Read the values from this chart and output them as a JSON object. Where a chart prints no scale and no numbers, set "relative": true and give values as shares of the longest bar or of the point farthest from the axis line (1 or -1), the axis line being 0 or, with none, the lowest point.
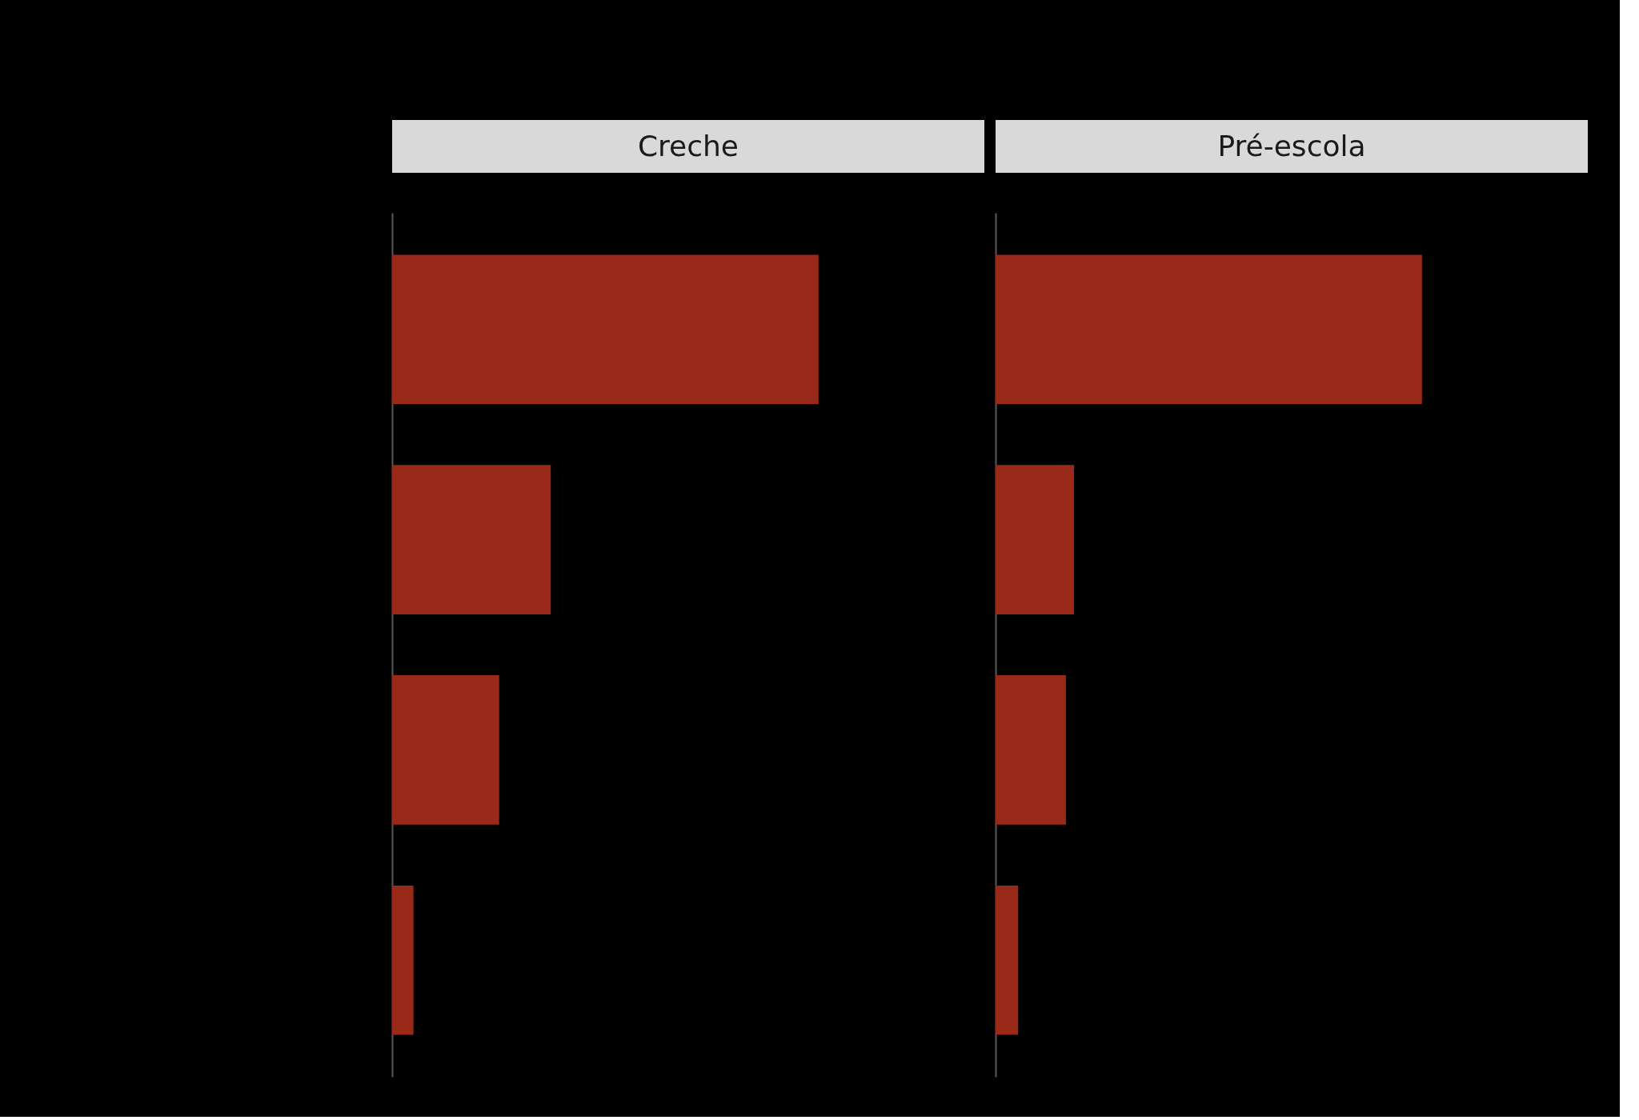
{
  "chart_data": [
    {
      "type": "bar",
      "orientation": "horizontal",
      "relative": true,
      "title": "Creche",
      "categories": [
        null,
        null,
        null,
        null
      ],
      "values": [
        1,
        0.372,
        0.251,
        0.05
      ],
      "color": "#992a19"
    },
    {
      "type": "bar",
      "orientation": "horizontal",
      "relative": true,
      "title": "Pré-escola",
      "categories": [
        null,
        null,
        null,
        null
      ],
      "values": [
        1,
        0.184,
        0.165,
        0.053
      ],
      "color": "#992a19"
    }
  ]
}
